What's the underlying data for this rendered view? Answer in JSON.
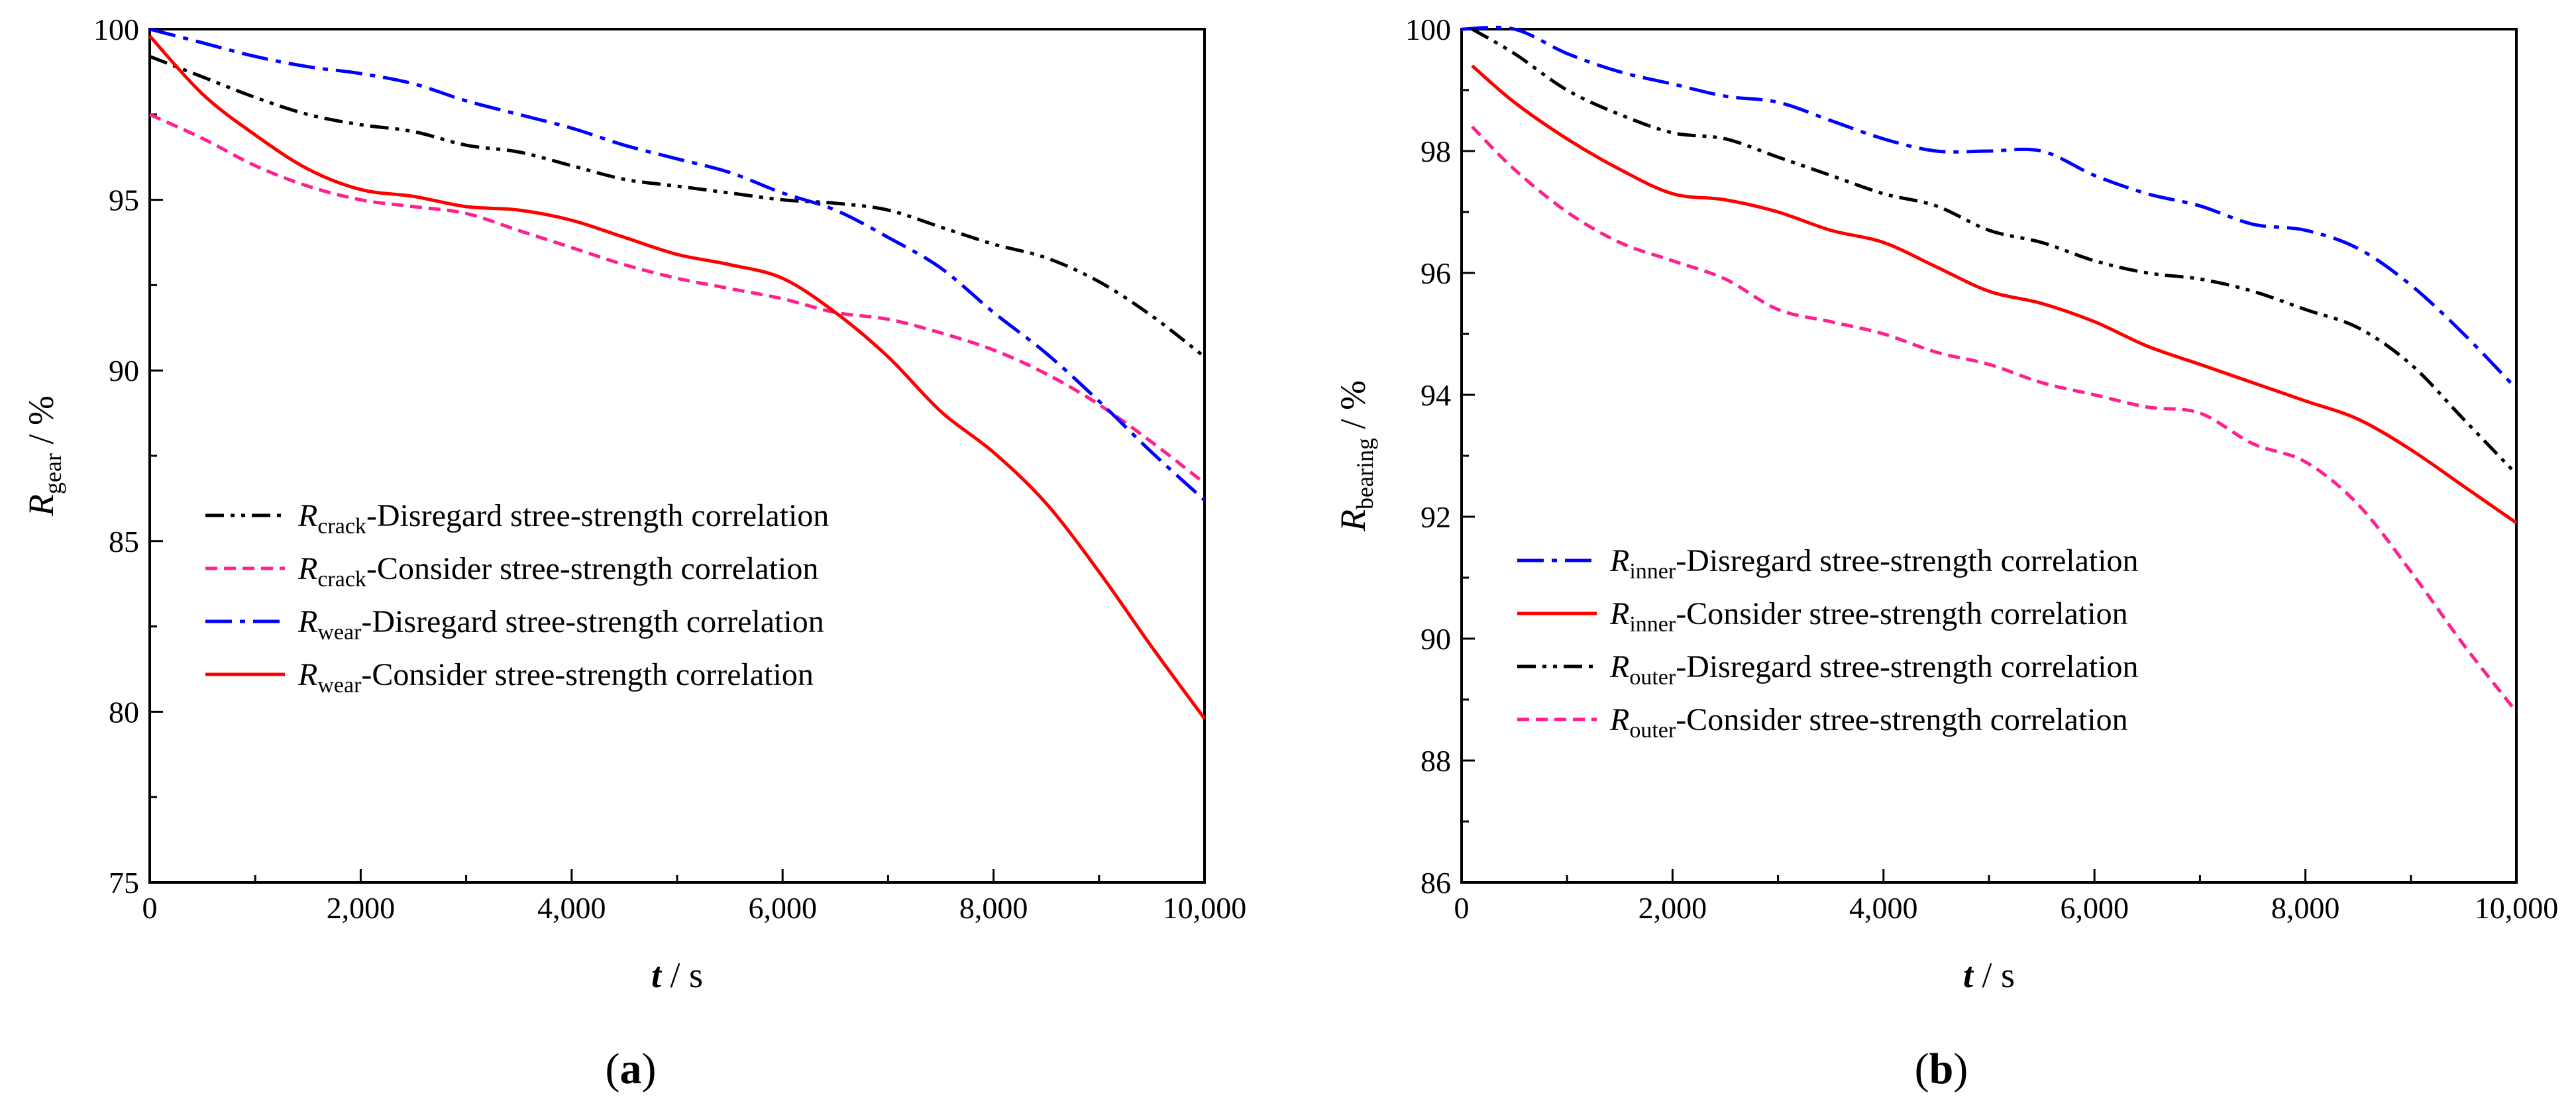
{
  "chart_data": [
    {
      "type": "line",
      "panel_label": {
        "pre": "(",
        "letter": "a",
        "post": ")"
      },
      "xlabel": {
        "var": "t",
        "unit": " / s"
      },
      "ylabel": {
        "main": "R",
        "sub": "gear",
        "unit": " / %"
      },
      "xlim": [
        0,
        10000
      ],
      "ylim": [
        75,
        100
      ],
      "x_ticks": [
        0,
        2000,
        4000,
        6000,
        8000,
        10000
      ],
      "x_tick_labels": [
        "0",
        "2,000",
        "4,000",
        "6,000",
        "8,000",
        "10,000"
      ],
      "y_ticks": [
        75,
        80,
        85,
        90,
        95,
        100
      ],
      "y_tick_labels": [
        "75",
        "80",
        "85",
        "90",
        "95",
        "100"
      ],
      "grid": false,
      "legend_position": "left",
      "series": [
        {
          "name": {
            "main": "R",
            "sub": "crack",
            "rest": "-Disregard stree-strength correlation"
          },
          "color": "#000000",
          "dash": "dash-dot-dot",
          "x": [
            0,
            500,
            1000,
            1500,
            2000,
            2500,
            3000,
            3500,
            4000,
            4500,
            5000,
            5500,
            6000,
            6500,
            7000,
            7500,
            8000,
            8500,
            9000,
            9500,
            10000
          ],
          "y": [
            99.2,
            98.6,
            98.0,
            97.5,
            97.2,
            97.0,
            96.6,
            96.4,
            96.0,
            95.6,
            95.4,
            95.2,
            95.0,
            94.9,
            94.7,
            94.2,
            93.7,
            93.3,
            92.6,
            91.6,
            90.4
          ]
        },
        {
          "name": {
            "main": "R",
            "sub": "crack",
            "rest": "-Consider stree-strength correlation"
          },
          "color": "#ff1f8e",
          "dash": "short-dash",
          "x": [
            0,
            500,
            1000,
            1500,
            2000,
            2500,
            3000,
            3500,
            4000,
            4500,
            5000,
            5500,
            6000,
            6500,
            7000,
            7500,
            8000,
            8500,
            9000,
            9500,
            10000
          ],
          "y": [
            97.5,
            96.8,
            96.0,
            95.4,
            95.0,
            94.8,
            94.6,
            94.1,
            93.6,
            93.1,
            92.7,
            92.4,
            92.1,
            91.7,
            91.5,
            91.1,
            90.6,
            89.9,
            89.0,
            87.9,
            86.7
          ]
        },
        {
          "name": {
            "main": "R",
            "sub": "wear",
            "rest": "-Disregard stree-strength correlation"
          },
          "color": "#0000ff",
          "dash": "dash-dot",
          "x": [
            0,
            500,
            1000,
            1500,
            2000,
            2500,
            3000,
            3500,
            4000,
            4500,
            5000,
            5500,
            6000,
            6500,
            7000,
            7500,
            8000,
            8500,
            9000,
            9500,
            10000
          ],
          "y": [
            100.0,
            99.6,
            99.2,
            98.9,
            98.7,
            98.4,
            97.9,
            97.5,
            97.1,
            96.6,
            96.2,
            95.8,
            95.2,
            94.7,
            93.9,
            93.0,
            91.7,
            90.5,
            89.1,
            87.6,
            86.2
          ]
        },
        {
          "name": {
            "main": "R",
            "sub": "wear",
            "rest": "-Consider stree-strength correlation"
          },
          "color": "#ff0000",
          "dash": "solid",
          "x": [
            0,
            500,
            1000,
            1500,
            2000,
            2500,
            3000,
            3500,
            4000,
            4500,
            5000,
            5500,
            6000,
            6500,
            7000,
            7500,
            8000,
            8500,
            9000,
            9500,
            10000
          ],
          "y": [
            99.8,
            98.1,
            96.9,
            95.9,
            95.3,
            95.1,
            94.8,
            94.7,
            94.4,
            93.9,
            93.4,
            93.1,
            92.7,
            91.7,
            90.4,
            88.8,
            87.6,
            86.1,
            84.1,
            81.9,
            79.8
          ]
        }
      ]
    },
    {
      "type": "line",
      "panel_label": {
        "pre": "(",
        "letter": "b",
        "post": ")"
      },
      "xlabel": {
        "var": "t",
        "unit": " / s"
      },
      "ylabel": {
        "main": "R",
        "sub": "bearing",
        "unit": " / %"
      },
      "xlim": [
        0,
        10000
      ],
      "ylim": [
        86,
        100
      ],
      "x_ticks": [
        0,
        2000,
        4000,
        6000,
        8000,
        10000
      ],
      "x_tick_labels": [
        "0",
        "2,000",
        "4,000",
        "6,000",
        "8,000",
        "10,000"
      ],
      "y_ticks": [
        86,
        88,
        90,
        92,
        94,
        96,
        98,
        100
      ],
      "y_tick_labels": [
        "86",
        "88",
        "90",
        "92",
        "94",
        "96",
        "98",
        "100"
      ],
      "grid": false,
      "legend_position": "left",
      "series": [
        {
          "name": {
            "main": "R",
            "sub": "inner",
            "rest": "-Disregard stree-strength correlation"
          },
          "color": "#0000ff",
          "dash": "dash-dot",
          "x": [
            0,
            500,
            1000,
            1500,
            2000,
            2500,
            3000,
            3500,
            4000,
            4500,
            5000,
            5500,
            6000,
            6500,
            7000,
            7500,
            8000,
            8500,
            9000,
            9500,
            10000
          ],
          "y": [
            100.2,
            100.0,
            99.6,
            99.3,
            99.1,
            98.9,
            98.8,
            98.5,
            98.2,
            98.0,
            98.0,
            98.0,
            97.6,
            97.3,
            97.1,
            96.8,
            96.7,
            96.4,
            95.8,
            95.0,
            94.1
          ]
        },
        {
          "name": {
            "main": "R",
            "sub": "inner",
            "rest": "-Consider stree-strength correlation"
          },
          "color": "#ff0000",
          "dash": "solid",
          "x": [
            100,
            500,
            1000,
            1500,
            2000,
            2500,
            3000,
            3500,
            4000,
            4500,
            5000,
            5500,
            6000,
            6500,
            7000,
            7500,
            8000,
            8500,
            9000,
            9500,
            10000
          ],
          "y": [
            99.4,
            98.8,
            98.2,
            97.7,
            97.3,
            97.2,
            97.0,
            96.7,
            96.5,
            96.1,
            95.7,
            95.5,
            95.2,
            94.8,
            94.5,
            94.2,
            93.9,
            93.6,
            93.1,
            92.5,
            91.9
          ]
        },
        {
          "name": {
            "main": "R",
            "sub": "outer",
            "rest": "-Disregard stree-strength correlation"
          },
          "color": "#000000",
          "dash": "dash-dot-dot",
          "x": [
            100,
            500,
            1000,
            1500,
            2000,
            2500,
            3000,
            3500,
            4000,
            4500,
            5000,
            5500,
            6000,
            6500,
            7000,
            7500,
            8000,
            8500,
            9000,
            9500,
            10000
          ],
          "y": [
            100.0,
            99.6,
            99.0,
            98.6,
            98.3,
            98.2,
            97.9,
            97.6,
            97.3,
            97.1,
            96.7,
            96.5,
            96.2,
            96.0,
            95.9,
            95.7,
            95.4,
            95.1,
            94.5,
            93.6,
            92.7
          ]
        },
        {
          "name": {
            "main": "R",
            "sub": "outer",
            "rest": "-Consider stree-strength correlation"
          },
          "color": "#ff1f8e",
          "dash": "short-dash",
          "x": [
            100,
            500,
            1000,
            1500,
            2000,
            2500,
            3000,
            3500,
            4000,
            4500,
            5000,
            5500,
            6000,
            6500,
            7000,
            7500,
            8000,
            8500,
            9000,
            9500,
            10000
          ],
          "y": [
            98.4,
            97.7,
            97.0,
            96.5,
            96.2,
            95.9,
            95.4,
            95.2,
            95.0,
            94.7,
            94.5,
            94.2,
            94.0,
            93.8,
            93.7,
            93.2,
            92.9,
            92.2,
            91.1,
            89.9,
            88.8
          ]
        }
      ]
    }
  ]
}
